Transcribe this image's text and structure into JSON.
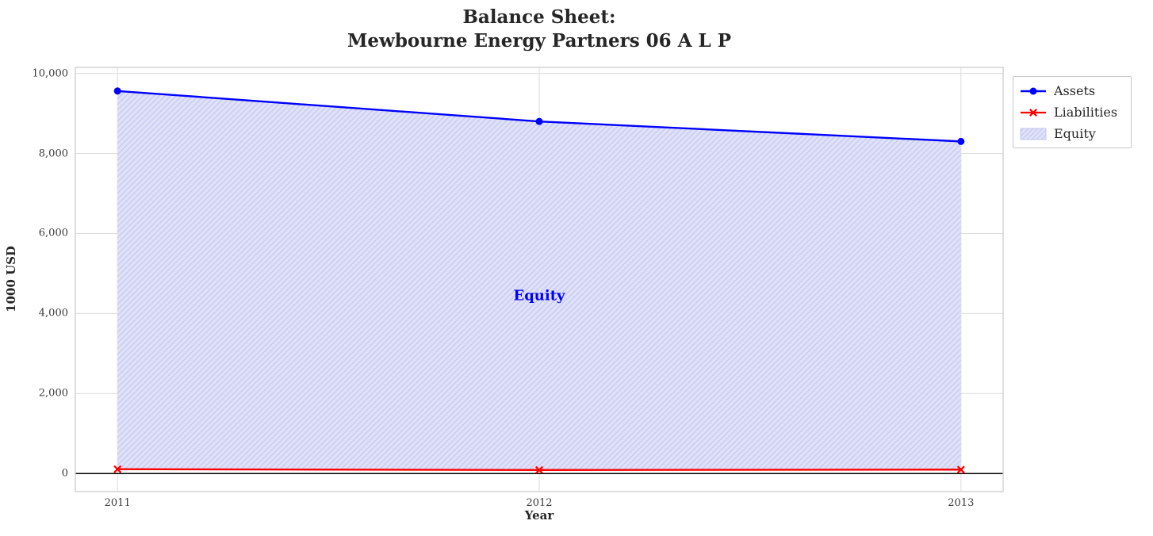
{
  "chart_data": {
    "type": "line",
    "title_lines": [
      "Balance Sheet:",
      "Mewbourne Energy Partners 06 A L P"
    ],
    "xlabel": "Year",
    "ylabel": "1000 USD",
    "x": [
      2011,
      2012,
      2013
    ],
    "xlim": [
      2010.9,
      2013.1
    ],
    "ylim": [
      -450,
      10150
    ],
    "x_ticks": [
      2011,
      2012,
      2013
    ],
    "x_tick_labels": [
      "2011",
      "2012",
      "2013"
    ],
    "y_ticks": [
      0,
      2000,
      4000,
      6000,
      8000,
      10000
    ],
    "y_tick_labels": [
      "0",
      "2,000",
      "4,000",
      "6,000",
      "8,000",
      "10,000"
    ],
    "series": [
      {
        "name": "Assets",
        "values": [
          9560,
          8800,
          8300
        ],
        "color": "#0000ff",
        "marker": "circle"
      },
      {
        "name": "Liabilities",
        "values": [
          110,
          90,
          100
        ],
        "color": "#ff0000",
        "marker": "x"
      }
    ],
    "area": {
      "name": "Equity",
      "between": [
        "Liabilities",
        "Assets"
      ],
      "fill": "#dfe1f8",
      "hatch_color": "#c3c6f0"
    },
    "annotation": {
      "text": "Equity",
      "x": 2012,
      "y": 4450,
      "color": "#0000ff"
    },
    "legend": [
      {
        "label": "Assets",
        "type": "line-circle",
        "color": "#0000ff"
      },
      {
        "label": "Liabilities",
        "type": "line-x",
        "color": "#ff0000"
      },
      {
        "label": "Equity",
        "type": "patch-hatch",
        "color": "#dfe1f8"
      }
    ],
    "grid": true,
    "grid_color": "#dcdcdc",
    "border_color": "#cccccc",
    "zero_line_color": "#000000",
    "legend_position": "upper-right-outside"
  }
}
